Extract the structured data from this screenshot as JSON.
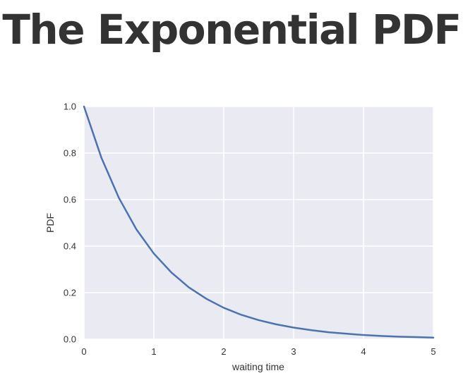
{
  "page": {
    "title": "The Exponential PDF"
  },
  "chart_data": {
    "type": "line",
    "title": "",
    "xlabel": "waiting time",
    "ylabel": "PDF",
    "xlim": [
      0,
      5
    ],
    "ylim": [
      0,
      1
    ],
    "xticks": [
      "0",
      "1",
      "2",
      "3",
      "4",
      "5"
    ],
    "yticks": [
      "0.0",
      "0.2",
      "0.4",
      "0.6",
      "0.8",
      "1.0"
    ],
    "grid": true,
    "legend": "none",
    "colors": {
      "line": "#4c72b0",
      "plot_background": "#eaeaf2",
      "grid": "#ffffff"
    },
    "series": [
      {
        "x": [
          0,
          0.25,
          0.5,
          0.75,
          1,
          1.25,
          1.5,
          1.75,
          2,
          2.25,
          2.5,
          2.75,
          3,
          3.25,
          3.5,
          3.75,
          4,
          4.25,
          4.5,
          4.75,
          5
        ],
        "y": [
          1.0,
          0.779,
          0.607,
          0.472,
          0.368,
          0.287,
          0.223,
          0.174,
          0.135,
          0.105,
          0.082,
          0.064,
          0.05,
          0.039,
          0.03,
          0.024,
          0.018,
          0.014,
          0.011,
          0.009,
          0.007
        ]
      }
    ]
  }
}
